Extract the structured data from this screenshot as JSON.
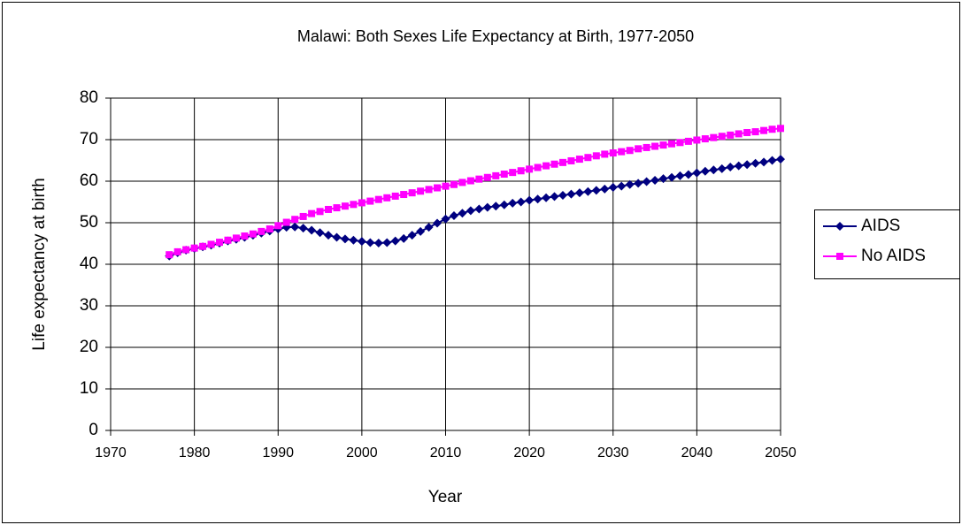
{
  "chart_data": {
    "type": "line",
    "title": "Malawi: Both Sexes Life Expectancy at Birth, 1977-2050",
    "x_label": "Year",
    "y_label": "Life expectancy at birth",
    "x": [
      1977,
      1978,
      1979,
      1980,
      1981,
      1982,
      1983,
      1984,
      1985,
      1986,
      1987,
      1988,
      1989,
      1990,
      1991,
      1992,
      1993,
      1994,
      1995,
      1996,
      1997,
      1998,
      1999,
      2000,
      2001,
      2002,
      2003,
      2004,
      2005,
      2006,
      2007,
      2008,
      2009,
      2010,
      2011,
      2012,
      2013,
      2014,
      2015,
      2016,
      2017,
      2018,
      2019,
      2020,
      2021,
      2022,
      2023,
      2024,
      2025,
      2026,
      2027,
      2028,
      2029,
      2030,
      2031,
      2032,
      2033,
      2034,
      2035,
      2036,
      2037,
      2038,
      2039,
      2040,
      2041,
      2042,
      2043,
      2044,
      2045,
      2046,
      2047,
      2048,
      2049,
      2050
    ],
    "series": [
      {
        "name": "AIDS",
        "color": "#000080",
        "marker": "diamond",
        "values": [
          42.0,
          42.8,
          43.4,
          43.8,
          44.2,
          44.6,
          45.1,
          45.6,
          46.0,
          46.5,
          47.0,
          47.5,
          48.0,
          48.5,
          48.9,
          49.0,
          48.7,
          48.2,
          47.6,
          47.0,
          46.5,
          46.1,
          45.8,
          45.5,
          45.2,
          45.1,
          45.2,
          45.6,
          46.2,
          47.0,
          47.9,
          48.9,
          49.9,
          50.9,
          51.7,
          52.3,
          52.9,
          53.3,
          53.7,
          54.0,
          54.3,
          54.7,
          55.0,
          55.4,
          55.7,
          56.0,
          56.3,
          56.6,
          56.9,
          57.2,
          57.5,
          57.8,
          58.1,
          58.5,
          58.8,
          59.2,
          59.5,
          59.9,
          60.2,
          60.6,
          60.9,
          61.3,
          61.6,
          62.0,
          62.4,
          62.7,
          63.0,
          63.4,
          63.7,
          64.0,
          64.3,
          64.6,
          65.0,
          65.3
        ]
      },
      {
        "name": "No AIDS",
        "color": "#ff00ff",
        "marker": "square",
        "values": [
          42.3,
          43.0,
          43.5,
          43.9,
          44.3,
          44.8,
          45.3,
          45.8,
          46.3,
          46.8,
          47.3,
          47.9,
          48.5,
          49.3,
          50.1,
          50.8,
          51.5,
          52.2,
          52.7,
          53.2,
          53.6,
          54.0,
          54.4,
          54.8,
          55.2,
          55.6,
          56.0,
          56.4,
          56.8,
          57.2,
          57.6,
          58.0,
          58.4,
          58.8,
          59.2,
          59.7,
          60.1,
          60.5,
          60.9,
          61.3,
          61.7,
          62.1,
          62.5,
          62.9,
          63.3,
          63.7,
          64.1,
          64.5,
          64.9,
          65.3,
          65.7,
          66.1,
          66.5,
          66.8,
          67.1,
          67.4,
          67.8,
          68.1,
          68.4,
          68.7,
          69.0,
          69.3,
          69.6,
          69.9,
          70.2,
          70.5,
          70.8,
          71.1,
          71.4,
          71.7,
          71.9,
          72.2,
          72.5,
          72.7
        ]
      }
    ],
    "xlim": [
      1970,
      2050
    ],
    "xticks": [
      1970,
      1980,
      1990,
      2000,
      2010,
      2020,
      2030,
      2040,
      2050
    ],
    "ylim": [
      0,
      80
    ],
    "yticks": [
      0,
      10,
      20,
      30,
      40,
      50,
      60,
      70,
      80
    ],
    "grid": true,
    "legend": "right"
  }
}
